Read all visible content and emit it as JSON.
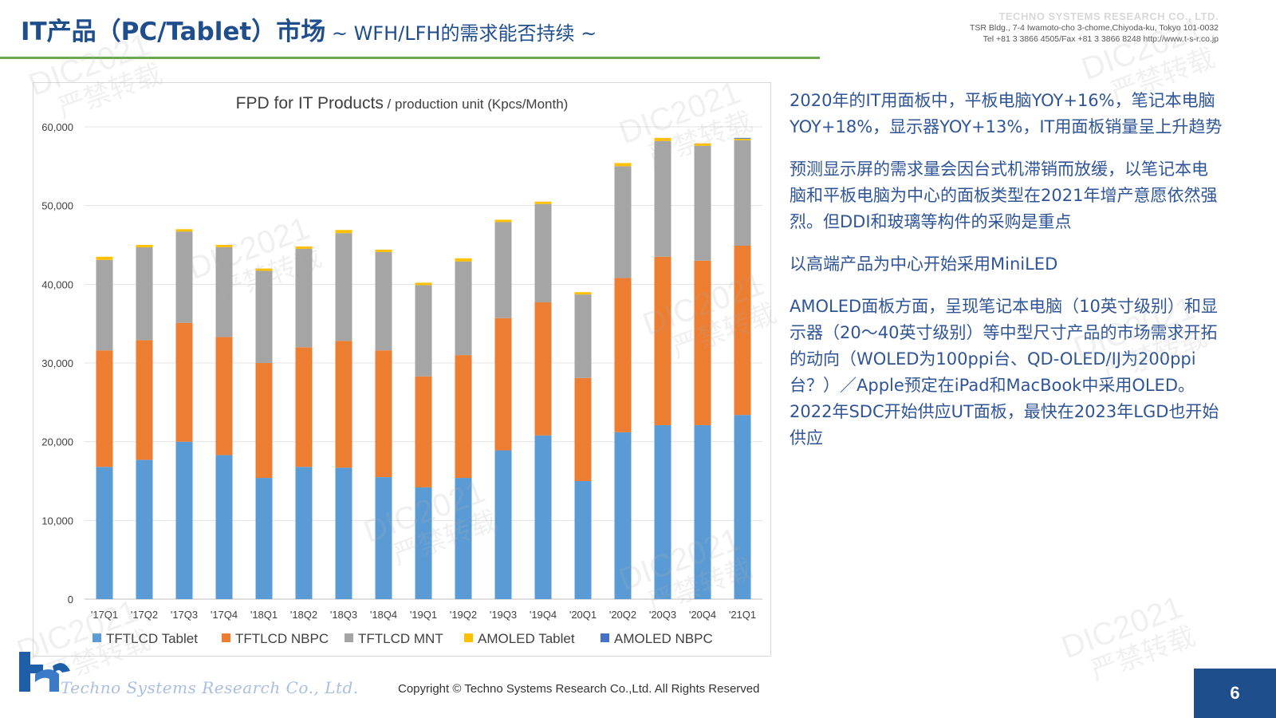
{
  "header": {
    "title_main": "IT产品（PC/Tablet）市场",
    "title_sub": " ~ WFH/LFH的需求能否持续 ~",
    "company_name": "TECHNO SYSTEMS RESEARCH CO., LTD.",
    "company_address": "TSR Bldg., 7-4 Iwamoto-cho 3-chome,Chiyoda-ku, Tokyo 101-0032",
    "company_contact": "Tel +81 3 3866 4505/Fax +81 3 3866 8248    http://www.t-s-r.co.jp"
  },
  "chart_data": {
    "type": "bar",
    "stacked": true,
    "title": "FPD for IT Products",
    "subtitle": " / production unit (Kpcs/Month)",
    "xlabel": "",
    "ylabel": "",
    "ylim": [
      0,
      60000
    ],
    "yticks": [
      0,
      10000,
      20000,
      30000,
      40000,
      50000,
      60000
    ],
    "ytick_labels": [
      "0",
      "10,000",
      "20,000",
      "30,000",
      "40,000",
      "50,000",
      "60,000"
    ],
    "grid": true,
    "legend_position": "bottom",
    "categories": [
      "'17Q1",
      "'17Q2",
      "'17Q3",
      "'17Q4",
      "'18Q1",
      "'18Q2",
      "'18Q3",
      "'18Q4",
      "'19Q1",
      "'19Q2",
      "'19Q3",
      "'19Q4",
      "'20Q1",
      "'20Q2",
      "'20Q3",
      "'20Q4",
      "'21Q1"
    ],
    "series": [
      {
        "name": "TFTLCD Tablet",
        "color": "#5b9bd5",
        "values": [
          16800,
          17700,
          20000,
          18300,
          15400,
          16800,
          16700,
          15500,
          14200,
          15400,
          18900,
          20800,
          15000,
          21200,
          22100,
          22100,
          23400
        ]
      },
      {
        "name": "TFTLCD NBPC",
        "color": "#ed7d31",
        "values": [
          14800,
          15200,
          15100,
          15000,
          14600,
          15200,
          16100,
          16100,
          14100,
          15600,
          16800,
          16900,
          13100,
          19600,
          21400,
          20900,
          21500
        ]
      },
      {
        "name": "TFTLCD MNT",
        "color": "#a5a5a5",
        "values": [
          11500,
          11800,
          11600,
          11400,
          11700,
          12500,
          13700,
          12500,
          11600,
          11900,
          12200,
          12500,
          10600,
          14200,
          14700,
          14600,
          13400
        ]
      },
      {
        "name": "AMOLED Tablet",
        "color": "#ffc000",
        "values": [
          400,
          300,
          300,
          300,
          300,
          300,
          400,
          300,
          300,
          400,
          300,
          300,
          300,
          400,
          400,
          300,
          200
        ]
      },
      {
        "name": "AMOLED NBPC",
        "color": "#4472c4",
        "values": [
          0,
          0,
          0,
          0,
          0,
          0,
          0,
          0,
          0,
          0,
          0,
          0,
          0,
          0,
          0,
          0,
          100
        ]
      }
    ]
  },
  "commentary": [
    "2020年的IT用面板中，平板电脑YOY+16%，笔记本电脑YOY+18%，显示器YOY+13%，IT用面板销量呈上升趋势",
    "预测显示屏的需求量会因台式机滞销而放缓，以笔记本电脑和平板电脑为中心的面板类型在2021年增产意愿依然强烈。但DDI和玻璃等构件的采购是重点",
    "以高端产品为中心开始采用MiniLED",
    "AMOLED面板方面，呈现笔记本电脑（10英寸级别）和显示器（20～40英寸级别）等中型尺寸产品的市场需求开拓的动向（WOLED为100ppi台、QD-OLED/IJ为200ppi台？）／Apple预定在iPad和MacBook中采用OLED。2022年SDC开始供应UT面板，最快在2023年LGD也开始供应"
  ],
  "footer": {
    "logo_text": "Techno Systems Research Co., Ltd.",
    "copyright": "Copyright © Techno Systems Research Co.,Ltd. All Rights Reserved",
    "page_number": "6"
  },
  "watermark": {
    "line1": "DIC2021",
    "line2": "严禁转载"
  }
}
